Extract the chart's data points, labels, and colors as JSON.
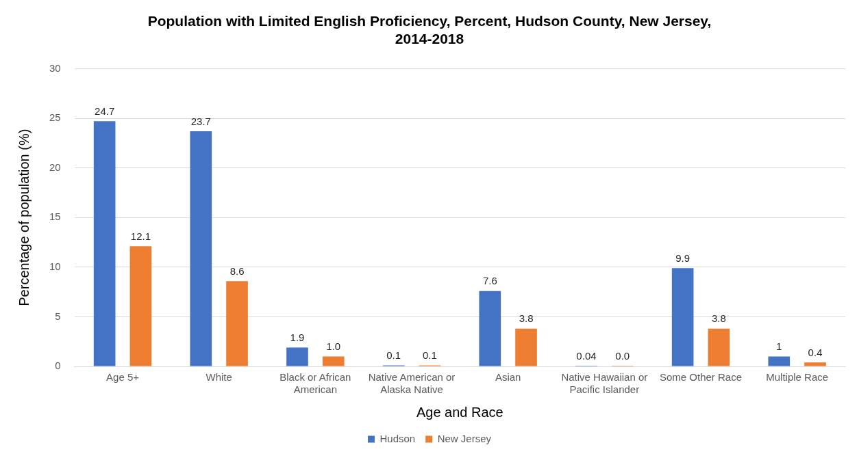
{
  "chart_data": {
    "type": "bar",
    "title": "Population with Limited English Proficiency, Percent, Hudson County, New Jersey, 2014-2018",
    "xlabel": "Age and Race",
    "ylabel": "Percentage of population (%)",
    "categories": [
      "Age 5+",
      "White",
      "Black or African American",
      "Native American or Alaska Native",
      "Asian",
      "Native Hawaiian or Pacific Islander",
      "Some Other Race",
      "Multiple Race"
    ],
    "series": [
      {
        "name": "Hudson",
        "color": "#4472c4",
        "values": [
          24.7,
          23.7,
          1.9,
          0.1,
          7.6,
          0.04,
          9.9,
          1
        ],
        "value_labels": [
          "24.7",
          "23.7",
          "1.9",
          "0.1",
          "7.6",
          "0.04",
          "9.9",
          "1"
        ]
      },
      {
        "name": "New Jersey",
        "color": "#ed7d31",
        "values": [
          12.1,
          8.6,
          1.0,
          0.1,
          3.8,
          0.0,
          3.8,
          0.4
        ],
        "value_labels": [
          "12.1",
          "8.6",
          "1.0",
          "0.1",
          "3.8",
          "0.0",
          "3.8",
          "0.4"
        ]
      }
    ],
    "ylim": [
      0,
      30
    ],
    "yticks": [
      0,
      5,
      10,
      15,
      20,
      25,
      30
    ],
    "grid": "y",
    "legend": "bottom"
  }
}
